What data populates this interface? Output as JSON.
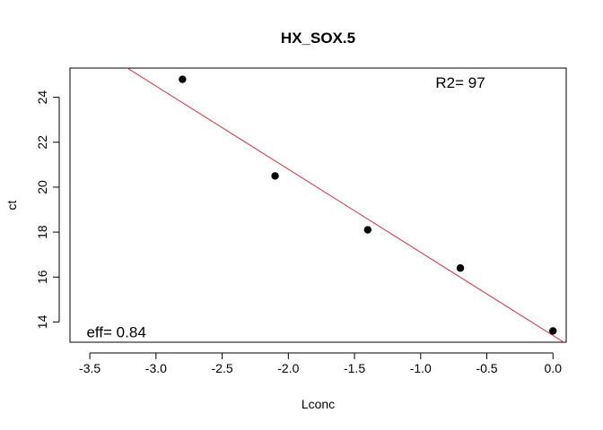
{
  "chart_data": {
    "type": "scatter",
    "title": "HX_SOX.5",
    "xlabel": "Lconc",
    "ylabel": "ct",
    "xlim": [
      -3.65,
      0.1
    ],
    "ylim": [
      13.1,
      25.3
    ],
    "x_ticks": [
      -3.5,
      -3.0,
      -2.5,
      -2.0,
      -1.5,
      -1.0,
      -0.5,
      0.0
    ],
    "x_tick_labels": [
      "-3.5",
      "-3.0",
      "-2.5",
      "-2.0",
      "-1.5",
      "-1.0",
      "-0.5",
      "0.0"
    ],
    "y_ticks": [
      14,
      16,
      18,
      20,
      22,
      24
    ],
    "y_tick_labels": [
      "14",
      "16",
      "18",
      "20",
      "22",
      "24"
    ],
    "grid": false,
    "points": {
      "x": [
        -2.8,
        -2.1,
        -1.4,
        -0.7,
        0.0
      ],
      "y": [
        24.8,
        20.5,
        18.1,
        16.4,
        13.6
      ],
      "color": "#000000"
    },
    "fit_line": {
      "intercept": 13.4,
      "slope": -3.7,
      "color": "#cc3344"
    },
    "annotations": [
      {
        "text": "R2= 97",
        "x": -0.7,
        "y": 24.6
      },
      {
        "text": "eff= 0.84",
        "x": -3.3,
        "y": 13.5
      }
    ]
  }
}
